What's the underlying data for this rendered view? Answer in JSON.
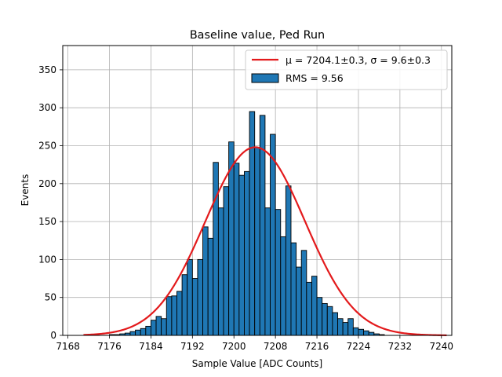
{
  "chart_data": {
    "type": "bar",
    "title": "Baseline value, Ped Run",
    "xlabel": "Sample Value [ADC Counts]",
    "ylabel": "Events",
    "xlim": [
      7167,
      7242
    ],
    "ylim": [
      0,
      382
    ],
    "x_ticks": [
      "7168",
      "7176",
      "7184",
      "7192",
      "7200",
      "7208",
      "7216",
      "7224",
      "7232",
      "7240"
    ],
    "y_ticks": [
      "0",
      "50",
      "100",
      "150",
      "200",
      "250",
      "300",
      "350"
    ],
    "grid": true,
    "legend_position": "top-right",
    "bar_color": "#1f77b4",
    "fit_color": "#e31a1c",
    "bins": {
      "start": 7176,
      "width": 1,
      "counts": [
        1,
        1,
        2,
        3,
        5,
        7,
        9,
        12,
        20,
        25,
        22,
        51,
        52,
        58,
        80,
        100,
        75,
        100,
        143,
        128,
        228,
        168,
        196,
        255,
        227,
        211,
        216,
        295,
        248,
        290,
        168,
        265,
        166,
        130,
        197,
        122,
        90,
        112,
        70,
        78,
        50,
        42,
        38,
        30,
        22,
        17,
        22,
        10,
        8,
        6,
        4,
        2,
        1
      ]
    },
    "series": [
      {
        "name": "μ = 7204.1±0.3, σ = 9.6±0.3",
        "type": "line",
        "mu": 7204.1,
        "sigma": 9.6,
        "amplitude": 248,
        "range": [
          7171,
          7241
        ]
      },
      {
        "name": "RMS = 9.56",
        "type": "bar"
      }
    ],
    "legend": {
      "fit_label": "μ = 7204.1±0.3, σ = 9.6±0.3",
      "hist_label": "RMS = 9.56"
    }
  }
}
